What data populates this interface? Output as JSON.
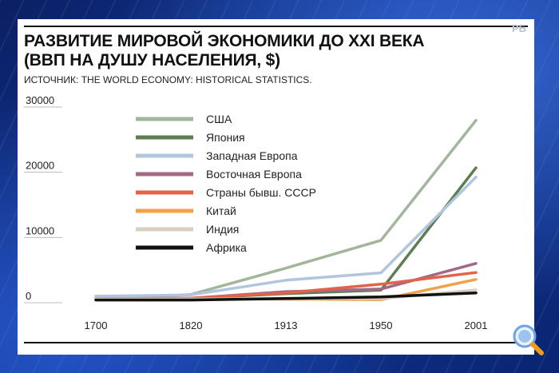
{
  "header": {
    "title_line1": "РАЗВИТИЕ МИРОВОЙ ЭКОНОМИКИ ДО XXI ВЕКА",
    "title_line2": "(ВВП НА ДУШУ НАСЕЛЕНИЯ, $)",
    "source": "ИСТОЧНИК: THE WORLD ECONOMY: HISTORICAL STATISTICS."
  },
  "logo_text": "РБ",
  "chart_data": {
    "type": "line",
    "title": "РАЗВИТИЕ МИРОВОЙ ЭКОНОМИКИ ДО XXI ВЕКА (ВВП НА ДУШУ НАСЕЛЕНИЯ, $)",
    "categories": [
      "1700",
      "1820",
      "1913",
      "1950",
      "2001"
    ],
    "y_ticks": [
      "0",
      "10000",
      "20000",
      "30000"
    ],
    "ylim": [
      0,
      30000
    ],
    "grid": false,
    "legend_position": "top-left",
    "series": [
      {
        "name": "США",
        "color": "#a3b69c",
        "values": [
          530,
          1260,
          5300,
          9560,
          27950
        ]
      },
      {
        "name": "Япония",
        "color": "#5e7e52",
        "values": [
          570,
          670,
          1390,
          1920,
          20680
        ]
      },
      {
        "name": "Западная Европа",
        "color": "#b1c6de",
        "values": [
          1000,
          1200,
          3450,
          4580,
          19260
        ]
      },
      {
        "name": "Восточная Европа",
        "color": "#a06a86",
        "values": [
          600,
          680,
          1700,
          2100,
          6030
        ]
      },
      {
        "name": "Страны бывш. СССР",
        "color": "#e4624a",
        "values": [
          610,
          690,
          1490,
          2840,
          4630
        ]
      },
      {
        "name": "Китай",
        "color": "#f2a14a",
        "values": [
          600,
          600,
          550,
          450,
          3580
        ]
      },
      {
        "name": "Индия",
        "color": "#d9cfc0",
        "values": [
          550,
          530,
          670,
          620,
          1960
        ]
      },
      {
        "name": "Африка",
        "color": "#111111",
        "values": [
          420,
          420,
          640,
          890,
          1490
        ]
      }
    ]
  }
}
